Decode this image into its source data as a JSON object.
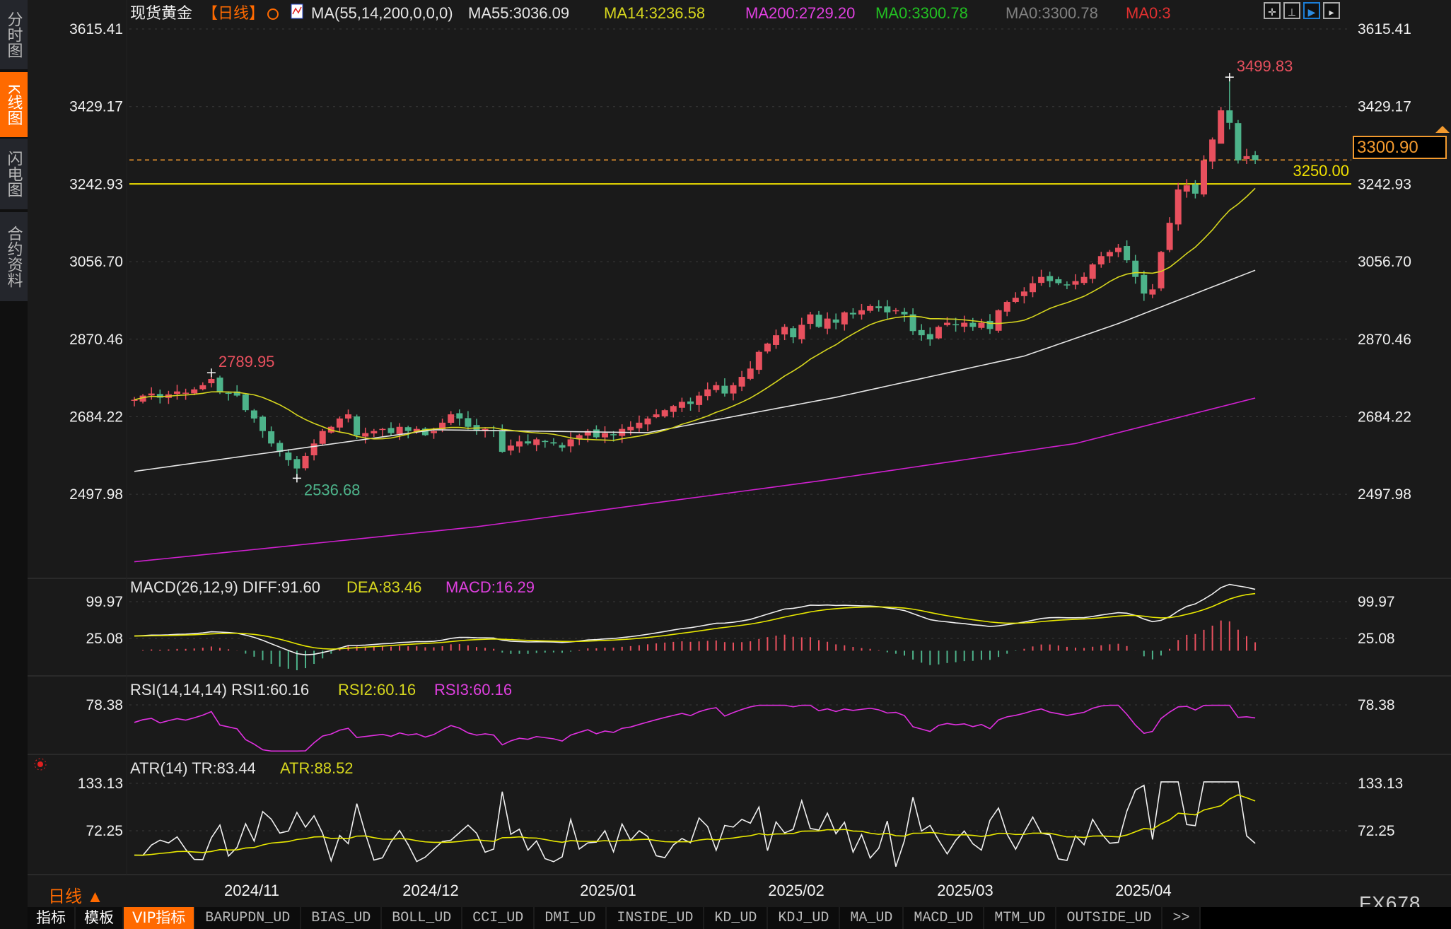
{
  "sidebar": {
    "items": [
      {
        "label": "分时图",
        "active": false
      },
      {
        "label": "K线图",
        "active": true
      },
      {
        "label": "闪电图",
        "active": false
      },
      {
        "label": "合约资料",
        "active": false
      }
    ]
  },
  "header": {
    "symbol": "现货黄金",
    "period": "【日线】",
    "legend": [
      {
        "text": "MA(55,14,200,0,0,0)",
        "color": "#e6e6e6"
      },
      {
        "text": "MA55:3036.09",
        "color": "#e6e6e6"
      },
      {
        "text": "MA14:3236.58",
        "color": "#d6d61e"
      },
      {
        "text": "MA200:2729.20",
        "color": "#e040e0"
      },
      {
        "text": "MA0:3300.78",
        "color": "#22c022"
      },
      {
        "text": "MA0:3300.78",
        "color": "#808080"
      },
      {
        "text": "MA0:3",
        "color": "#e03030"
      }
    ],
    "tool_icons": [
      "crosshair-icon",
      "range-icon",
      "play-right-icon",
      "skip-right-icon"
    ]
  },
  "main_axis": {
    "ticks": [
      "3615.41",
      "3429.17",
      "3242.93",
      "3056.70",
      "2870.46",
      "2684.22",
      "2497.98"
    ],
    "values": [
      3615.41,
      3429.17,
      3242.93,
      3056.7,
      2870.46,
      2684.22,
      2497.98
    ]
  },
  "markers": {
    "high": "3499.83",
    "peak": "2789.95",
    "low": "2536.68"
  },
  "hlines": {
    "support_label": "3250.00",
    "support_value": 3250.0,
    "last_price": "3300.90",
    "last_value": 3300.9
  },
  "macd": {
    "legend": [
      {
        "text": "MACD(26,12,9) DIFF:91.60",
        "color": "#e6e6e6"
      },
      {
        "text": "DEA:83.46",
        "color": "#d6d61e"
      },
      {
        "text": "MACD:16.29",
        "color": "#e040e0"
      }
    ],
    "ticks": [
      "99.97",
      "25.08"
    ]
  },
  "rsi": {
    "legend": [
      {
        "text": "RSI(14,14,14) RSI1:60.16",
        "color": "#e6e6e6"
      },
      {
        "text": "RSI2:60.16",
        "color": "#d6d61e"
      },
      {
        "text": "RSI3:60.16",
        "color": "#e040e0"
      }
    ],
    "ticks": [
      "78.38"
    ]
  },
  "atr": {
    "legend": [
      {
        "text": "ATR(14) TR:83.44",
        "color": "#e6e6e6"
      },
      {
        "text": "ATR:88.52",
        "color": "#d6d61e"
      }
    ],
    "ticks": [
      "133.13",
      "72.25"
    ]
  },
  "time_axis": {
    "labels": [
      "2024/11",
      "2024/12",
      "2025/01",
      "2025/02",
      "2025/03",
      "2025/04"
    ]
  },
  "period_button": "日线 ▲",
  "brand": "FX678",
  "tabs": [
    "指标",
    "模板",
    "VIP指标",
    "BARUPDN_UD",
    "BIAS_UD",
    "BOLL_UD",
    "CCI_UD",
    "DMI_UD",
    "INSIDE_UD",
    "KD_UD",
    "KDJ_UD",
    "MA_UD",
    "MACD_UD",
    "MTM_UD",
    "OUTSIDE_UD",
    ">>"
  ],
  "colors": {
    "up": "#e8505e",
    "down": "#4db38a",
    "ma14": "#d6d61e",
    "ma55": "#e6e6e6",
    "ma200": "#d020d0",
    "accent": "#ff6a00"
  },
  "chart_data": {
    "type": "candlestick",
    "ylim": [
      2320,
      3615.41
    ],
    "closes": [
      2725,
      2735,
      2740,
      2730,
      2738,
      2745,
      2742,
      2750,
      2760,
      2775,
      2745,
      2740,
      2735,
      2700,
      2680,
      2650,
      2620,
      2600,
      2580,
      2560,
      2590,
      2620,
      2650,
      2660,
      2680,
      2690,
      2640,
      2645,
      2650,
      2655,
      2645,
      2660,
      2650,
      2655,
      2640,
      2650,
      2670,
      2690,
      2680,
      2660,
      2650,
      2655,
      2650,
      2600,
      2615,
      2625,
      2620,
      2630,
      2625,
      2620,
      2610,
      2630,
      2640,
      2650,
      2635,
      2645,
      2640,
      2655,
      2660,
      2670,
      2680,
      2690,
      2700,
      2710,
      2720,
      2715,
      2735,
      2750,
      2760,
      2740,
      2760,
      2780,
      2800,
      2840,
      2860,
      2880,
      2900,
      2875,
      2905,
      2930,
      2900,
      2920,
      2910,
      2935,
      2930,
      2940,
      2950,
      2945,
      2935,
      2940,
      2930,
      2890,
      2880,
      2870,
      2900,
      2910,
      2905,
      2910,
      2900,
      2910,
      2895,
      2940,
      2960,
      2970,
      2985,
      3005,
      3020,
      3010,
      3005,
      3000,
      3010,
      3020,
      3050,
      3070,
      3080,
      3090,
      3060,
      3020,
      2980,
      2990,
      3080,
      3150,
      3230,
      3240,
      3220,
      3300,
      3350,
      3420,
      3390,
      3300,
      3310,
      3300.9
    ],
    "extremes": {
      "high": 3499.83,
      "peak": 2789.95,
      "low": 2536.68
    },
    "ma55_points": [
      [
        0,
        2553
      ],
      [
        35,
        2653
      ],
      [
        60,
        2646
      ],
      [
        82,
        2731
      ],
      [
        104,
        2830
      ],
      [
        115,
        2908
      ],
      [
        131,
        3036.09
      ]
    ],
    "ma200_points": [
      [
        0,
        2336
      ],
      [
        40,
        2420
      ],
      [
        80,
        2530
      ],
      [
        110,
        2620
      ],
      [
        131,
        2729.2
      ]
    ]
  }
}
